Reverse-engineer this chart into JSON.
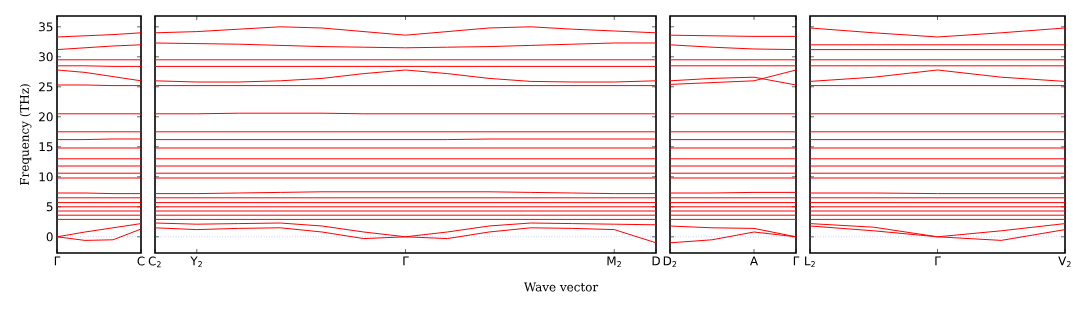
{
  "chart_data": [
    {
      "type": "line",
      "color": "#ff0000",
      "ylabel": "Frequency (THz)",
      "categories": [
        "Γ",
        null,
        null,
        "C"
      ],
      "ylim": [
        -2.7,
        36.8
      ],
      "yticks": [
        0,
        5,
        10,
        15,
        20,
        25,
        30,
        35
      ],
      "ref_lines": [
        {
          "axis": "y",
          "value": 0,
          "color": "#7777ff",
          "line_style": "dotted"
        }
      ],
      "series": [
        {
          "values": [
            33.3,
            33.5,
            33.7,
            34.0
          ]
        },
        {
          "values": [
            31.2,
            31.5,
            31.8,
            32.0
          ]
        },
        {
          "values": [
            29.5,
            29.5,
            29.5,
            29.5
          ]
        },
        {
          "values": [
            28.5,
            28.5,
            28.4,
            28.4
          ]
        },
        {
          "values": [
            27.8,
            27.4,
            26.7,
            26.0
          ]
        },
        {
          "values": [
            25.3,
            25.3,
            25.2,
            25.2
          ]
        },
        {
          "values": [
            20.5,
            20.5,
            20.5,
            20.5
          ]
        },
        {
          "values": [
            17.5,
            17.5,
            17.5,
            17.5
          ]
        },
        {
          "values": [
            16.2,
            16.2,
            16.3,
            16.3
          ]
        },
        {
          "values": [
            14.8,
            14.8,
            14.8,
            14.8
          ]
        },
        {
          "values": [
            13.0,
            13.0,
            13.0,
            13.0
          ]
        },
        {
          "values": [
            11.8,
            11.8,
            11.8,
            11.8
          ]
        },
        {
          "values": [
            10.6,
            10.6,
            10.6,
            10.6
          ]
        },
        {
          "values": [
            9.8,
            9.8,
            9.8,
            9.8
          ]
        },
        {
          "values": [
            7.3,
            7.3,
            7.2,
            7.2
          ]
        },
        {
          "values": [
            6.5,
            6.5,
            6.5,
            6.5
          ]
        },
        {
          "values": [
            5.7,
            5.7,
            5.7,
            5.7
          ]
        },
        {
          "values": [
            5.0,
            5.0,
            5.0,
            5.0
          ]
        },
        {
          "values": [
            4.3,
            4.3,
            4.3,
            4.3
          ]
        },
        {
          "values": [
            3.6,
            3.6,
            3.6,
            3.6
          ]
        },
        {
          "values": [
            2.9,
            2.9,
            2.9,
            2.9
          ]
        },
        {
          "values": [
            0,
            -0.6,
            -0.5,
            1.3
          ]
        },
        {
          "values": [
            0,
            0.8,
            1.5,
            2.2
          ]
        }
      ]
    },
    {
      "type": "line",
      "color": "#ff0000",
      "xlabel": "Wave vector",
      "categories": [
        "C$_{2}$",
        "Y$_{2}$",
        null,
        null,
        null,
        null,
        "Γ",
        null,
        null,
        null,
        null,
        "M$_{2}$",
        "D"
      ],
      "ylim": [
        -2.7,
        36.8
      ],
      "tick_labels": "x",
      "yticks": [
        0,
        5,
        10,
        15,
        20,
        25,
        30,
        35
      ],
      "ref_lines": [
        {
          "axis": "y",
          "value": 0,
          "color": "#7777ff",
          "line_style": "dotted"
        }
      ],
      "series": [
        {
          "values": [
            34.0,
            34.2,
            34.6,
            35.0,
            34.8,
            34.2,
            33.6,
            34.2,
            34.8,
            35.0,
            34.6,
            34.3,
            34.0
          ]
        },
        {
          "values": [
            32.3,
            32.2,
            32.1,
            31.9,
            31.7,
            31.6,
            31.5,
            31.6,
            31.7,
            31.9,
            32.1,
            32.3,
            32.3
          ]
        },
        {
          "values": [
            29.5,
            29.5,
            29.5,
            29.5,
            29.5,
            29.5,
            29.5,
            29.5,
            29.5,
            29.5,
            29.5,
            29.5,
            29.5
          ]
        },
        {
          "values": [
            28.4,
            28.4,
            28.4,
            28.4,
            28.4,
            28.4,
            28.4,
            28.4,
            28.4,
            28.4,
            28.4,
            28.4,
            28.4
          ]
        },
        {
          "values": [
            26.0,
            25.8,
            25.8,
            26.0,
            26.4,
            27.2,
            27.8,
            27.2,
            26.4,
            25.9,
            25.8,
            25.8,
            26.0
          ]
        },
        {
          "values": [
            25.2,
            25.2,
            25.2,
            25.2,
            25.2,
            25.2,
            25.2,
            25.2,
            25.2,
            25.2,
            25.2,
            25.2,
            25.2
          ]
        },
        {
          "values": [
            20.5,
            20.5,
            20.6,
            20.6,
            20.6,
            20.5,
            20.5,
            20.5,
            20.5,
            20.5,
            20.5,
            20.5,
            20.5
          ]
        },
        {
          "values": [
            17.5,
            17.5,
            17.5,
            17.5,
            17.5,
            17.5,
            17.5,
            17.5,
            17.5,
            17.5,
            17.5,
            17.5,
            17.5
          ]
        },
        {
          "values": [
            16.2,
            16.2,
            16.2,
            16.2,
            16.2,
            16.2,
            16.2,
            16.2,
            16.3,
            16.3,
            16.3,
            16.3,
            16.3
          ]
        },
        {
          "values": [
            14.8,
            14.8,
            14.8,
            14.8,
            14.8,
            14.8,
            14.8,
            14.8,
            14.8,
            14.8,
            14.8,
            14.8,
            14.8
          ]
        },
        {
          "values": [
            13.0,
            13.0,
            13.0,
            13.0,
            13.0,
            13.0,
            13.0,
            13.0,
            13.0,
            13.0,
            13.0,
            13.0,
            13.0
          ]
        },
        {
          "values": [
            11.8,
            11.8,
            11.8,
            11.8,
            11.8,
            11.8,
            11.8,
            11.8,
            11.8,
            11.8,
            11.8,
            11.8,
            11.8
          ]
        },
        {
          "values": [
            10.6,
            10.6,
            10.6,
            10.6,
            10.6,
            10.6,
            10.6,
            10.6,
            10.6,
            10.6,
            10.6,
            10.6,
            10.6
          ]
        },
        {
          "values": [
            9.8,
            9.8,
            9.8,
            9.8,
            9.8,
            9.8,
            9.8,
            9.8,
            9.8,
            9.8,
            9.8,
            9.8,
            9.8
          ]
        },
        {
          "values": [
            7.2,
            7.2,
            7.3,
            7.4,
            7.5,
            7.5,
            7.5,
            7.5,
            7.5,
            7.4,
            7.3,
            7.2,
            7.2
          ]
        },
        {
          "values": [
            6.5,
            6.5,
            6.5,
            6.5,
            6.5,
            6.5,
            6.5,
            6.5,
            6.5,
            6.5,
            6.5,
            6.5,
            6.5
          ]
        },
        {
          "values": [
            5.7,
            5.7,
            5.7,
            5.7,
            5.7,
            5.7,
            5.7,
            5.7,
            5.7,
            5.7,
            5.7,
            5.7,
            5.7
          ]
        },
        {
          "values": [
            5.0,
            5.0,
            5.0,
            5.0,
            5.0,
            5.0,
            5.0,
            5.0,
            5.0,
            5.0,
            5.0,
            5.0,
            5.0
          ]
        },
        {
          "values": [
            4.3,
            4.3,
            4.3,
            4.3,
            4.3,
            4.3,
            4.3,
            4.3,
            4.3,
            4.3,
            4.3,
            4.3,
            4.3
          ]
        },
        {
          "values": [
            3.6,
            3.6,
            3.6,
            3.6,
            3.6,
            3.6,
            3.6,
            3.6,
            3.6,
            3.6,
            3.6,
            3.6,
            3.6
          ]
        },
        {
          "values": [
            2.9,
            2.9,
            2.9,
            2.9,
            2.9,
            2.9,
            2.9,
            2.9,
            2.9,
            2.9,
            2.9,
            2.9,
            2.9
          ]
        },
        {
          "values": [
            1.5,
            1.2,
            1.4,
            1.5,
            0.8,
            -0.3,
            0,
            -0.3,
            0.8,
            1.5,
            1.4,
            1.2,
            -1.0
          ]
        },
        {
          "values": [
            2.3,
            2.1,
            2.2,
            2.3,
            1.8,
            0.8,
            0,
            0.8,
            1.8,
            2.3,
            2.2,
            2.1,
            2.0
          ]
        }
      ]
    },
    {
      "type": "line",
      "color": "#ff0000",
      "categories": [
        "D$_{2}$",
        null,
        "A",
        "Γ"
      ],
      "ylim": [
        -2.7,
        36.8
      ],
      "tick_labels": "x",
      "yticks": [
        0,
        5,
        10,
        15,
        20,
        25,
        30,
        35
      ],
      "ref_lines": [
        {
          "axis": "y",
          "value": 0,
          "color": "#7777ff",
          "line_style": "dotted"
        }
      ],
      "series": [
        {
          "values": [
            33.6,
            33.5,
            33.4,
            33.4
          ]
        },
        {
          "values": [
            32.0,
            31.6,
            31.3,
            31.2
          ]
        },
        {
          "values": [
            29.5,
            29.5,
            29.5,
            29.5
          ]
        },
        {
          "values": [
            28.5,
            28.5,
            28.5,
            28.5
          ]
        },
        {
          "values": [
            26.0,
            26.4,
            26.6,
            25.3
          ]
        },
        {
          "values": [
            25.4,
            25.7,
            26.0,
            27.8
          ]
        },
        {
          "values": [
            20.5,
            20.5,
            20.5,
            20.5
          ]
        },
        {
          "values": [
            17.5,
            17.5,
            17.5,
            17.5
          ]
        },
        {
          "values": [
            16.2,
            16.2,
            16.2,
            16.2
          ]
        },
        {
          "values": [
            14.8,
            14.8,
            14.8,
            14.8
          ]
        },
        {
          "values": [
            13.0,
            13.0,
            13.0,
            13.0
          ]
        },
        {
          "values": [
            11.8,
            11.8,
            11.8,
            11.8
          ]
        },
        {
          "values": [
            10.6,
            10.6,
            10.6,
            10.6
          ]
        },
        {
          "values": [
            9.8,
            9.8,
            9.8,
            9.8
          ]
        },
        {
          "values": [
            7.3,
            7.3,
            7.4,
            7.4
          ]
        },
        {
          "values": [
            6.5,
            6.5,
            6.5,
            6.5
          ]
        },
        {
          "values": [
            5.7,
            5.7,
            5.7,
            5.7
          ]
        },
        {
          "values": [
            5.0,
            5.0,
            5.0,
            5.0
          ]
        },
        {
          "values": [
            4.3,
            4.3,
            4.3,
            4.3
          ]
        },
        {
          "values": [
            3.6,
            3.6,
            3.6,
            3.6
          ]
        },
        {
          "values": [
            2.9,
            2.9,
            2.9,
            2.9
          ]
        },
        {
          "values": [
            -1.0,
            -0.5,
            0.8,
            0
          ]
        },
        {
          "values": [
            1.8,
            1.5,
            1.4,
            0
          ]
        }
      ]
    },
    {
      "type": "line",
      "color": "#ff0000",
      "categories": [
        "L$_{2}$",
        null,
        "Γ",
        null,
        "V$_{2}$"
      ],
      "ylim": [
        -2.7,
        36.8
      ],
      "tick_labels": "x",
      "yticks": [
        0,
        5,
        10,
        15,
        20,
        25,
        30,
        35
      ],
      "ref_lines": [
        {
          "axis": "y",
          "value": 0,
          "color": "#7777ff",
          "line_style": "dotted"
        }
      ],
      "series": [
        {
          "values": [
            34.8,
            34.0,
            33.3,
            34.0,
            34.8
          ]
        },
        {
          "values": [
            32.0,
            32.0,
            32.0,
            32.0,
            32.0
          ]
        },
        {
          "values": [
            31.2,
            31.2,
            31.2,
            31.2,
            31.2
          ]
        },
        {
          "values": [
            29.5,
            29.5,
            29.5,
            29.5,
            29.5
          ]
        },
        {
          "values": [
            28.5,
            28.5,
            28.5,
            28.5,
            28.5
          ]
        },
        {
          "values": [
            25.9,
            26.6,
            27.8,
            26.6,
            25.9
          ]
        },
        {
          "values": [
            25.2,
            25.2,
            25.2,
            25.2,
            25.2
          ]
        },
        {
          "values": [
            20.5,
            20.5,
            20.5,
            20.5,
            20.5
          ]
        },
        {
          "values": [
            17.5,
            17.5,
            17.5,
            17.5,
            17.5
          ]
        },
        {
          "values": [
            16.2,
            16.2,
            16.2,
            16.2,
            16.2
          ]
        },
        {
          "values": [
            14.8,
            14.8,
            14.8,
            14.8,
            14.8
          ]
        },
        {
          "values": [
            13.0,
            13.0,
            13.0,
            13.0,
            13.0
          ]
        },
        {
          "values": [
            11.8,
            11.8,
            11.8,
            11.8,
            11.8
          ]
        },
        {
          "values": [
            10.6,
            10.6,
            10.6,
            10.6,
            10.6
          ]
        },
        {
          "values": [
            9.8,
            9.8,
            9.8,
            9.8,
            9.8
          ]
        },
        {
          "values": [
            7.3,
            7.3,
            7.2,
            7.2,
            7.2
          ]
        },
        {
          "values": [
            6.5,
            6.5,
            6.5,
            6.5,
            6.5
          ]
        },
        {
          "values": [
            5.7,
            5.7,
            5.7,
            5.7,
            5.7
          ]
        },
        {
          "values": [
            5.0,
            5.0,
            5.0,
            5.0,
            5.0
          ]
        },
        {
          "values": [
            4.3,
            4.3,
            4.3,
            4.3,
            4.3
          ]
        },
        {
          "values": [
            3.6,
            3.6,
            3.6,
            3.6,
            3.6
          ]
        },
        {
          "values": [
            2.9,
            2.9,
            2.9,
            2.9,
            2.9
          ]
        },
        {
          "values": [
            1.8,
            1.0,
            0,
            -0.6,
            1.2
          ]
        },
        {
          "values": [
            2.2,
            1.6,
            0,
            1.0,
            2.2
          ]
        }
      ]
    }
  ]
}
